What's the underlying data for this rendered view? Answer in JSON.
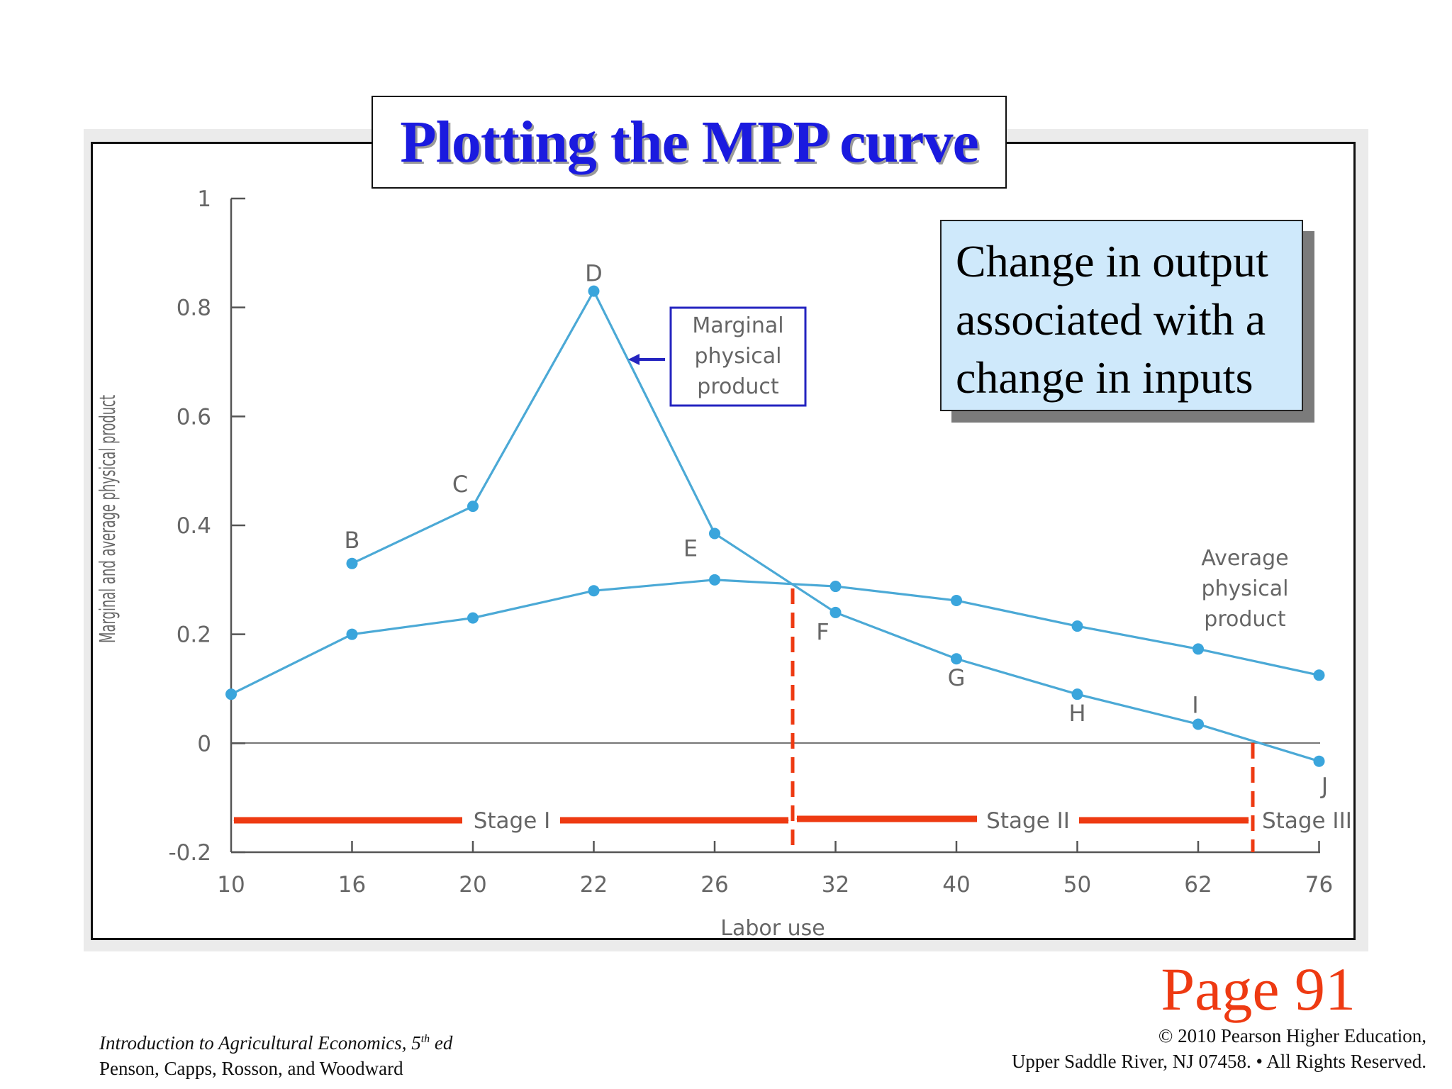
{
  "slide": {
    "title": "Plotting the MPP curve",
    "definition": "Change in output associated with a change in inputs",
    "page_label": "Page 91",
    "footer_left": {
      "line1_main": "Introduction to Agricultural Economics, 5",
      "line1_sup": "th",
      "line1_end": " ed",
      "line2": "Penson, Capps, Rosson, and Woodward"
    },
    "footer_right": {
      "line1": "© 2010 Pearson Higher Education,",
      "line2": "Upper Saddle River, NJ 07458. • All Rights Reserved."
    },
    "colors": {
      "title": "#1a1adf",
      "curve": "#4ba9d6",
      "stage": "#ee3a12",
      "callout_border": "#2424c0",
      "definition_bg": "#cfe9fb"
    }
  },
  "chart_data": {
    "type": "line",
    "xlabel": "Labor use",
    "ylabel": "Marginal and average physical product",
    "categories": [
      "10",
      "16",
      "20",
      "22",
      "26",
      "32",
      "40",
      "50",
      "62",
      "76"
    ],
    "yticks": [
      "1",
      "0.8",
      "0.6",
      "0.4",
      "0.2",
      "0",
      "-0.2"
    ],
    "ylim": [
      -0.2,
      1
    ],
    "series": [
      {
        "name": "Marginal physical product",
        "points": [
          {
            "x": "16",
            "y": 0.33,
            "label": "B"
          },
          {
            "x": "20",
            "y": 0.435,
            "label": "C"
          },
          {
            "x": "22",
            "y": 0.83,
            "label": "D"
          },
          {
            "x": "26",
            "y": 0.385,
            "label": "E"
          },
          {
            "x": "32",
            "y": 0.24,
            "label": "F"
          },
          {
            "x": "40",
            "y": 0.155,
            "label": "G"
          },
          {
            "x": "50",
            "y": 0.09,
            "label": "H"
          },
          {
            "x": "62",
            "y": 0.035,
            "label": "I"
          },
          {
            "x": "76",
            "y": -0.033,
            "label": "J"
          }
        ]
      },
      {
        "name": "Average physical product",
        "points": [
          {
            "x": "10",
            "y": 0.09
          },
          {
            "x": "16",
            "y": 0.2
          },
          {
            "x": "20",
            "y": 0.23
          },
          {
            "x": "22",
            "y": 0.28
          },
          {
            "x": "26",
            "y": 0.3
          },
          {
            "x": "32",
            "y": 0.288
          },
          {
            "x": "40",
            "y": 0.262
          },
          {
            "x": "50",
            "y": 0.215
          },
          {
            "x": "62",
            "y": 0.173
          },
          {
            "x": "76",
            "y": 0.125
          }
        ]
      }
    ],
    "callouts": {
      "marginal": [
        "Marginal",
        "physical",
        "product"
      ],
      "average": [
        "Average",
        "physical",
        "product"
      ]
    },
    "stages": [
      "Stage I",
      "Stage II",
      "Stage III"
    ],
    "grid": false
  }
}
